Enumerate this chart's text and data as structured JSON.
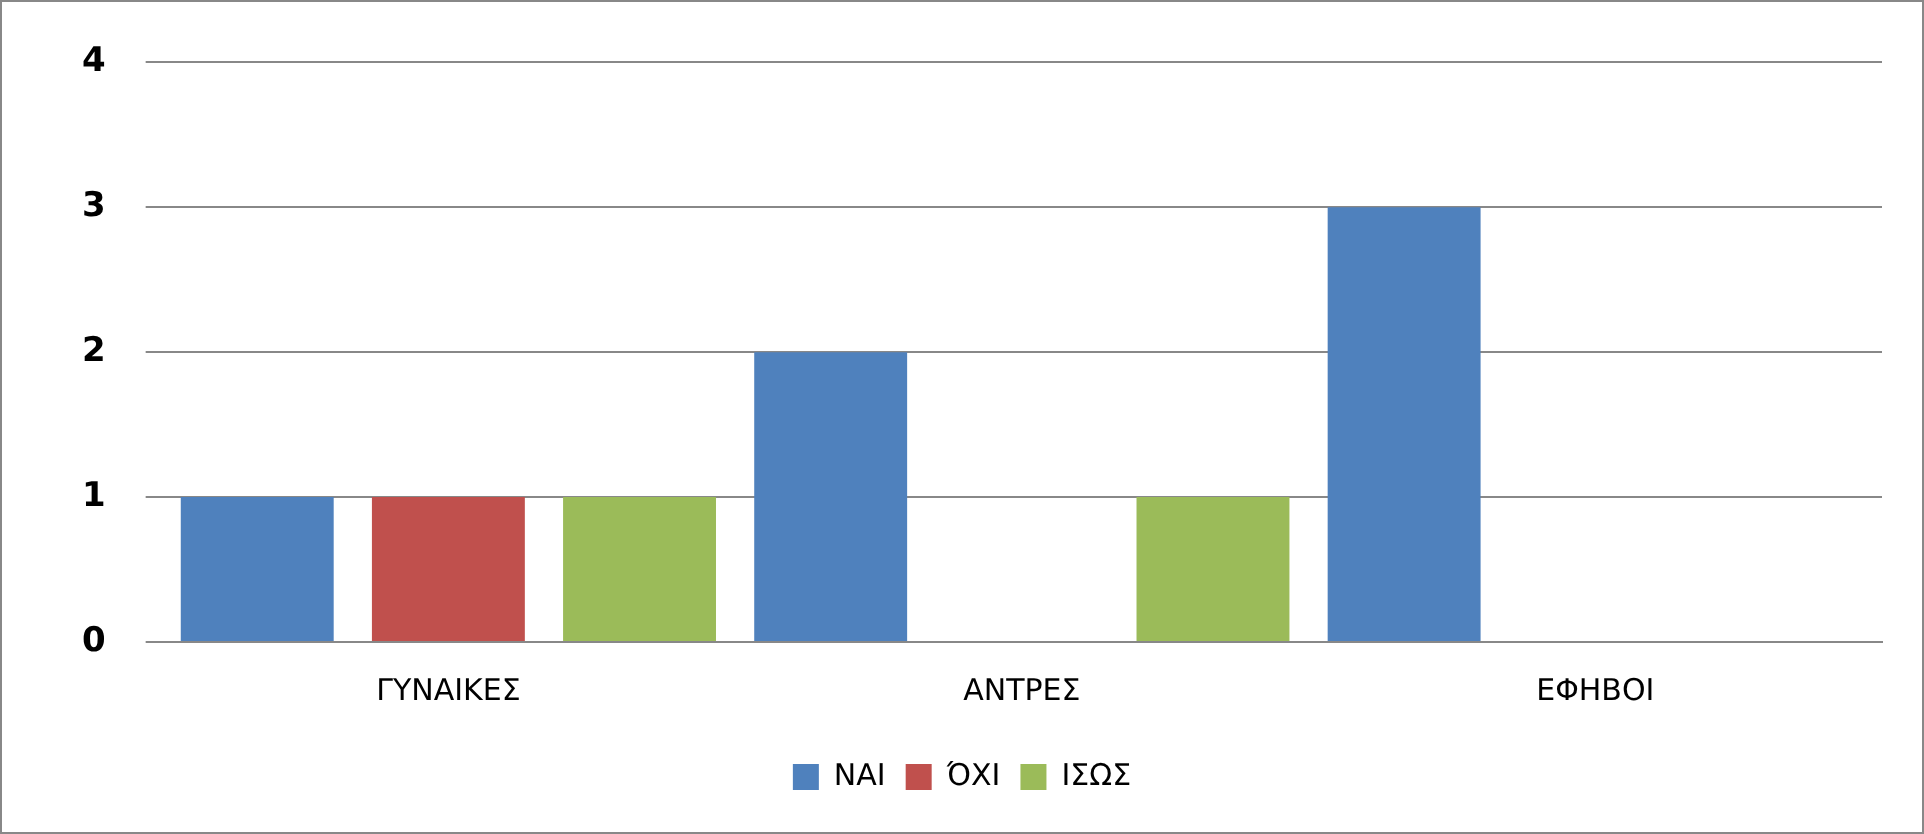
{
  "chart_data": {
    "type": "bar",
    "categories": [
      "ΓΥΝΑΙΚΕΣ",
      "ΑΝΤΡΕΣ",
      "ΕΦΗΒΟΙ"
    ],
    "series": [
      {
        "name": "ΝΑΙ",
        "color": "#4f81bd",
        "values": [
          1,
          2,
          3
        ]
      },
      {
        "name": "ΌΧΙ",
        "color": "#c0504d",
        "values": [
          1,
          0,
          0
        ]
      },
      {
        "name": "ΙΣΩΣ",
        "color": "#9bbb59",
        "values": [
          1,
          1,
          0
        ]
      }
    ],
    "ylim": [
      0,
      4
    ],
    "yticks": [
      0,
      1,
      2,
      3,
      4
    ],
    "grid": "y",
    "legend": "bottom"
  }
}
